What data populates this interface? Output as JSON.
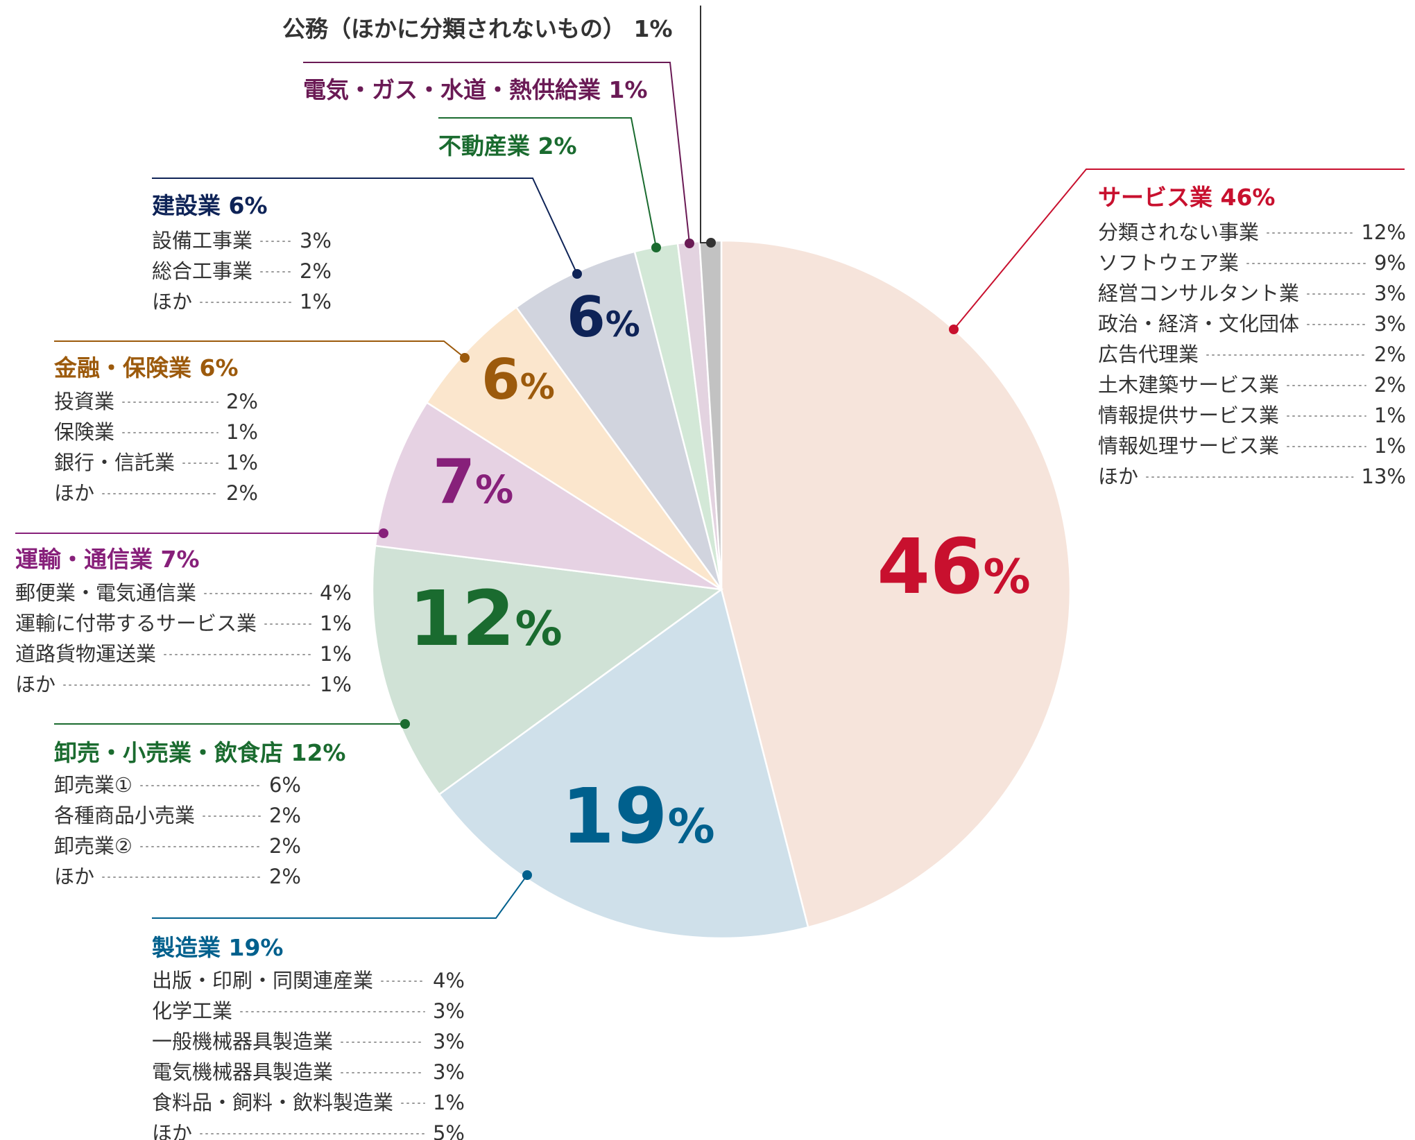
{
  "chart_data": {
    "type": "pie",
    "title": "",
    "start": "12 o'clock",
    "direction": "clockwise",
    "slices": [
      {
        "key": "service",
        "name": "サービス業",
        "value": 46,
        "label": "46%",
        "title": "サービス業 46%",
        "color": "#c8102e",
        "fill": "#f6e4db",
        "items": [
          {
            "name": "分類されない事業",
            "value": "12%"
          },
          {
            "name": "ソフトウェア業",
            "value": "9%"
          },
          {
            "name": "経営コンサルタント業",
            "value": "3%"
          },
          {
            "name": "政治・経済・文化団体",
            "value": "3%"
          },
          {
            "name": "広告代理業",
            "value": "2%"
          },
          {
            "name": "土木建築サービス業",
            "value": "2%"
          },
          {
            "name": "情報提供サービス業",
            "value": "1%"
          },
          {
            "name": "情報処理サービス業",
            "value": "1%"
          },
          {
            "name": "ほか",
            "value": "13%"
          }
        ]
      },
      {
        "key": "manufacturing",
        "name": "製造業",
        "value": 19,
        "label": "19%",
        "title": "製造業 19%",
        "color": "#00608d",
        "fill": "#cfe0ea",
        "items": [
          {
            "name": "出版・印刷・同関連産業",
            "value": "4%"
          },
          {
            "name": "化学工業",
            "value": "3%"
          },
          {
            "name": "一般機械器具製造業",
            "value": "3%"
          },
          {
            "name": "電気機械器具製造業",
            "value": "3%"
          },
          {
            "name": "食料品・飼料・飲料製造業",
            "value": "1%"
          },
          {
            "name": "ほか",
            "value": "5%"
          }
        ]
      },
      {
        "key": "wholesale",
        "name": "卸売・小売業・飲食店",
        "value": 12,
        "label": "12%",
        "title": "卸売・小売業・飲食店 12%",
        "color": "#1a6b2f",
        "fill": "#d0e2d6",
        "items": [
          {
            "name": "卸売業①",
            "value": "6%"
          },
          {
            "name": "各種商品小売業",
            "value": "2%"
          },
          {
            "name": "卸売業②",
            "value": "2%"
          },
          {
            "name": "ほか",
            "value": "2%"
          }
        ]
      },
      {
        "key": "transport",
        "name": "運輸・通信業",
        "value": 7,
        "label": "7%",
        "title": "運輸・通信業 7%",
        "color": "#87207a",
        "fill": "#e6d2e3",
        "items": [
          {
            "name": "郵便業・電気通信業",
            "value": "4%"
          },
          {
            "name": "運輸に付帯するサービス業",
            "value": "1%"
          },
          {
            "name": "道路貨物運送業",
            "value": "1%"
          },
          {
            "name": "ほか",
            "value": "1%"
          }
        ]
      },
      {
        "key": "finance",
        "name": "金融・保険業",
        "value": 6,
        "label": "6%",
        "title": "金融・保険業 6%",
        "color": "#9c5a0c",
        "fill": "#fbe6cd",
        "items": [
          {
            "name": "投資業",
            "value": "2%"
          },
          {
            "name": "保険業",
            "value": "1%"
          },
          {
            "name": "銀行・信託業",
            "value": "1%"
          },
          {
            "name": "ほか",
            "value": "2%"
          }
        ]
      },
      {
        "key": "construction",
        "name": "建設業",
        "value": 6,
        "label": "6%",
        "title": "建設業 6%",
        "color": "#0e2357",
        "fill": "#d1d4de",
        "items": [
          {
            "name": "設備工事業",
            "value": "3%"
          },
          {
            "name": "総合工事業",
            "value": "2%"
          },
          {
            "name": "ほか",
            "value": "1%"
          }
        ]
      },
      {
        "key": "realestate",
        "name": "不動産業",
        "value": 2,
        "label": "",
        "title": "不動産業 2%",
        "color": "#1a6b2f",
        "fill": "#d3e8d7",
        "items": []
      },
      {
        "key": "utilities",
        "name": "電気・ガス・水道・熱供給業",
        "value": 1,
        "label": "",
        "title": "電気・ガス・水道・熱供給業 1%",
        "color": "#6a1a55",
        "fill": "#e3d3e0",
        "items": []
      },
      {
        "key": "public",
        "name": "公務（ほかに分類されないもの）",
        "value": 1,
        "label": "",
        "title": "公務（ほかに分類されないもの） 1%",
        "color": "#333333",
        "fill": "#c2c2c2",
        "items": []
      }
    ]
  }
}
